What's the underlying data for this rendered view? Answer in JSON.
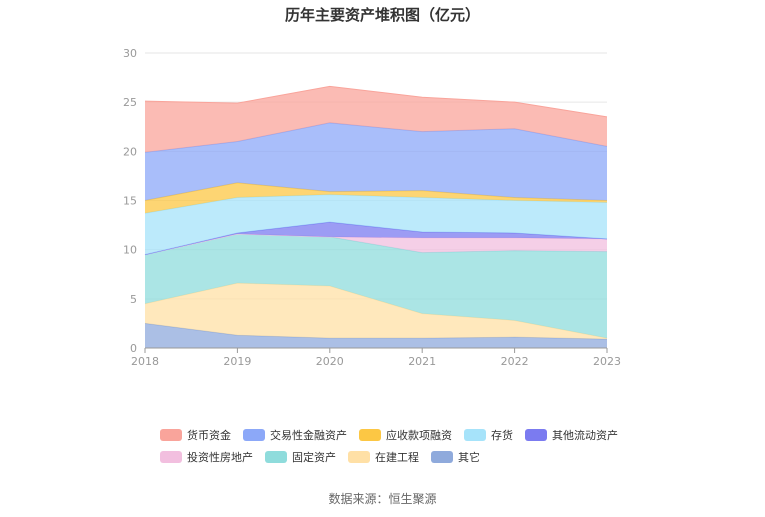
{
  "chart_data": {
    "type": "area",
    "stacked": true,
    "title": "历年主要资产堆积图（亿元）",
    "x": [
      "2018",
      "2019",
      "2020",
      "2021",
      "2022",
      "2023"
    ],
    "ylim": [
      0,
      30
    ],
    "yticks": [
      "0",
      "5",
      "10",
      "15",
      "20",
      "25",
      "30"
    ],
    "grid": true,
    "legend_position": "bottom",
    "series": [
      {
        "name": "其它",
        "color": "#8faadc",
        "values": [
          2.5,
          1.3,
          1.0,
          1.0,
          1.1,
          0.9
        ]
      },
      {
        "name": "在建工程",
        "color": "#ffe0a6",
        "values": [
          2.0,
          5.3,
          5.3,
          2.5,
          1.7,
          0.1
        ]
      },
      {
        "name": "固定资产",
        "color": "#8fdcdc",
        "values": [
          5.0,
          5.0,
          5.0,
          6.2,
          7.1,
          8.8
        ]
      },
      {
        "name": "投资性房地产",
        "color": "#f2bfdf",
        "values": [
          0.0,
          0.0,
          0.0,
          1.5,
          1.3,
          1.3
        ]
      },
      {
        "name": "其他流动资产",
        "color": "#7b7bf0",
        "values": [
          0.0,
          0.1,
          1.5,
          0.6,
          0.5,
          0.0
        ]
      },
      {
        "name": "存货",
        "color": "#a6e3fa",
        "values": [
          4.2,
          3.6,
          2.8,
          3.5,
          3.3,
          3.7
        ]
      },
      {
        "name": "应收款项融资",
        "color": "#fcc744",
        "values": [
          1.3,
          1.5,
          0.3,
          0.7,
          0.3,
          0.2
        ]
      },
      {
        "name": "交易性金融资产",
        "color": "#8ca8f8",
        "values": [
          4.9,
          4.2,
          7.0,
          6.0,
          7.0,
          5.5
        ]
      },
      {
        "name": "货币资金",
        "color": "#f9a49b",
        "values": [
          5.2,
          3.9,
          3.7,
          3.5,
          2.7,
          3.0
        ]
      }
    ],
    "legend_rows": [
      [
        "货币资金",
        "交易性金融资产",
        "应收款项融资",
        "存货",
        "其他流动资产"
      ],
      [
        "投资性房地产",
        "固定资产",
        "在建工程",
        "其它"
      ]
    ]
  },
  "source": "数据来源：恒生聚源"
}
